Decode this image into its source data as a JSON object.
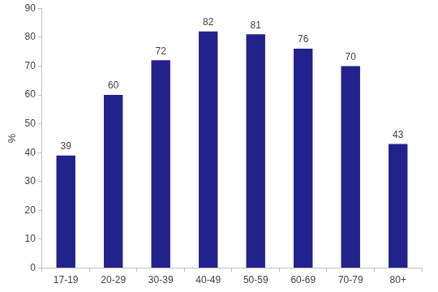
{
  "chart_data": {
    "type": "bar",
    "ylabel": "%",
    "categories": [
      "17-19",
      "20-29",
      "30-39",
      "40-49",
      "50-59",
      "60-69",
      "70-79",
      "80+"
    ],
    "values": [
      39,
      60,
      72,
      82,
      81,
      76,
      70,
      43
    ],
    "color": "#22228c",
    "ylim": [
      0,
      90
    ],
    "yticks": [
      0,
      10,
      20,
      30,
      40,
      50,
      60,
      70,
      80,
      90
    ],
    "grid": false,
    "data_labels": true
  }
}
